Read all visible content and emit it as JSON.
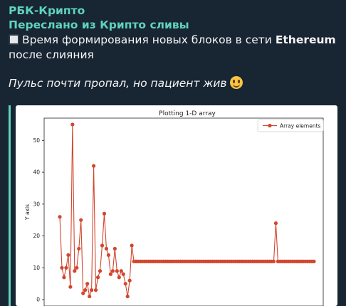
{
  "message": {
    "channel": "РБК-Крипто",
    "forwarded_from": "Переслано из Крипто сливы",
    "line1_prefix": "Время формирования новых блоков в сети ",
    "line1_bold": "Ethereum",
    "line2": "после слияния",
    "caption": "Пульс почти пропал, но пациент жив"
  },
  "icons": {
    "square": "white-square-icon",
    "emoji": "grinning-face-emoji"
  },
  "colors": {
    "accent": "#5fd3bf",
    "background": "#182533",
    "series": "#d2462e"
  },
  "chart_data": {
    "type": "line",
    "title": "Plotting 1-D array",
    "xlabel": "",
    "ylabel": "Y axis",
    "legend": "Array elements",
    "legend_position": "top-right",
    "ylim": [
      -2,
      57
    ],
    "yticks": [
      0,
      10,
      20,
      30,
      40,
      50
    ],
    "series": [
      {
        "name": "Array elements",
        "values": [
          26,
          10,
          7,
          10,
          14,
          4,
          55,
          9,
          10,
          16,
          25,
          2,
          3,
          5,
          1,
          3,
          42,
          3,
          7,
          9,
          17,
          27,
          16,
          14,
          8,
          9,
          16,
          9,
          7,
          9,
          8,
          5,
          1,
          6,
          17,
          12,
          12,
          12,
          12,
          12,
          12,
          12,
          12,
          12,
          12,
          12,
          12,
          12,
          12,
          12,
          12,
          12,
          12,
          12,
          12,
          12,
          12,
          12,
          12,
          12,
          12,
          12,
          12,
          12,
          12,
          12,
          12,
          12,
          12,
          12,
          12,
          12,
          12,
          12,
          12,
          12,
          12,
          12,
          12,
          12,
          12,
          12,
          12,
          12,
          12,
          12,
          12,
          12,
          12,
          12,
          12,
          12,
          12,
          12,
          12,
          12,
          12,
          12,
          12,
          12,
          12,
          12,
          24,
          12,
          12,
          12,
          12,
          12,
          12,
          12,
          12,
          12,
          12,
          12,
          12,
          12,
          12,
          12,
          12,
          12,
          12
        ]
      }
    ]
  }
}
